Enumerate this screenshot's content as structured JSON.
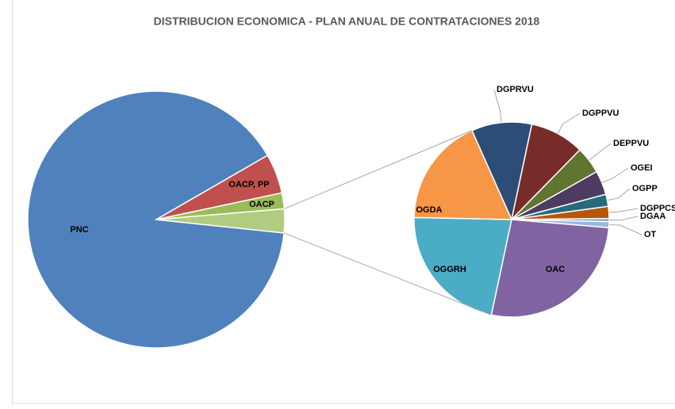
{
  "chart_data": [
    {
      "type": "pie",
      "title": "DISTRIBUCION ECONOMICA - PLAN ANUAL DE CONTRATACIONES 2018",
      "categories": [
        "PNC",
        "OACP, PP",
        "OACP",
        null
      ],
      "values": [
        90,
        5,
        2,
        3
      ],
      "colors": [
        "#4f81bd",
        "#c0504d",
        "#9bbb59",
        "#b0cc80"
      ]
    },
    {
      "type": "pie",
      "categories": [
        "DGPRVU",
        "DGPPVU",
        "DEPPVU",
        "OGEI",
        "OGPP",
        "DGPPCS",
        "DGAA",
        "OT",
        "OAC",
        "OGGRH",
        "OGDA"
      ],
      "values": [
        0.3,
        0.27,
        0.135,
        0.12,
        0.06,
        0.06,
        0.015,
        0.03,
        0.81,
        0.66,
        0.54
      ],
      "colors": [
        "#2c4d75",
        "#772c2a",
        "#5f7530",
        "#4d3b62",
        "#276a7c",
        "#b65708",
        "#729aca",
        "#9cb6dc",
        "#8064a2",
        "#4bacc6",
        "#f79646"
      ]
    }
  ]
}
